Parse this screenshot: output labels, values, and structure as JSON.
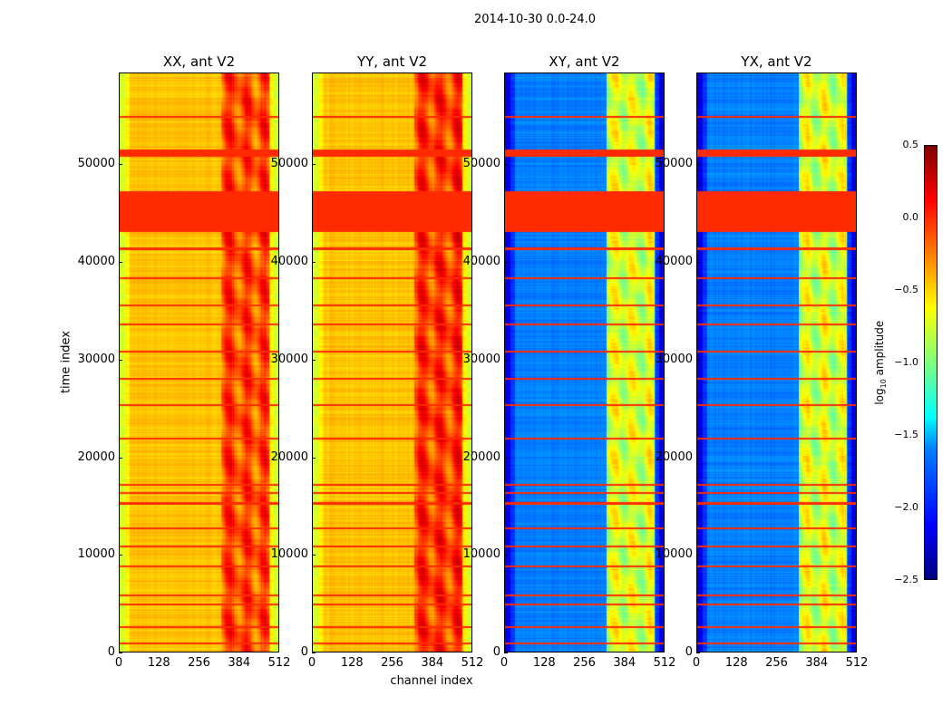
{
  "chart_data": {
    "type": "heatmap",
    "title": "2014-10-30 0.0-24.0",
    "xlabel": "channel index",
    "ylabel": "time index",
    "xlim": [
      0,
      512
    ],
    "ylim": [
      0,
      59400
    ],
    "xticks": [
      "0",
      "128",
      "256",
      "384",
      "512"
    ],
    "yticks": [
      "0",
      "10000",
      "20000",
      "30000",
      "40000",
      "50000"
    ],
    "colorbar": {
      "label_prefix": "log",
      "label_sub": "10",
      "label_suffix": " amplitude",
      "range": [
        -2.5,
        0.5
      ],
      "ticks": [
        "0.5",
        "0.0",
        "−0.5",
        "−1.0",
        "−1.5",
        "−2.0",
        "−2.5"
      ],
      "colormap": "jet"
    },
    "panels": [
      {
        "title": "XX, ant V2",
        "base_level": -0.45,
        "edge_level": -0.75,
        "hot_level": -0.1
      },
      {
        "title": "YY, ant V2",
        "base_level": -0.45,
        "edge_level": -0.75,
        "hot_level": -0.05
      },
      {
        "title": "XY, ant V2",
        "base_level": -1.75,
        "edge_level": -2.2,
        "hot_level": -0.75
      },
      {
        "title": "YX, ant V2",
        "base_level": -1.75,
        "edge_level": -2.2,
        "hot_level": -0.75
      }
    ],
    "hot_channel_range": [
      325,
      480
    ],
    "flag_level": 0.0,
    "flagged_time_ranges": [
      [
        43100,
        47300
      ],
      [
        50900,
        51600
      ],
      [
        54900,
        55100
      ],
      [
        41300,
        41500
      ],
      [
        38300,
        38500
      ],
      [
        35500,
        35700
      ],
      [
        33500,
        33750
      ],
      [
        30700,
        30900
      ],
      [
        27900,
        28100
      ],
      [
        25200,
        25400
      ],
      [
        21800,
        22000
      ],
      [
        17000,
        17250
      ],
      [
        16200,
        16400
      ],
      [
        15100,
        15300
      ],
      [
        12500,
        12750
      ],
      [
        10700,
        10900
      ],
      [
        8600,
        8850
      ],
      [
        5600,
        5800
      ],
      [
        4700,
        4900
      ],
      [
        2400,
        2600
      ],
      [
        700,
        900
      ]
    ]
  }
}
